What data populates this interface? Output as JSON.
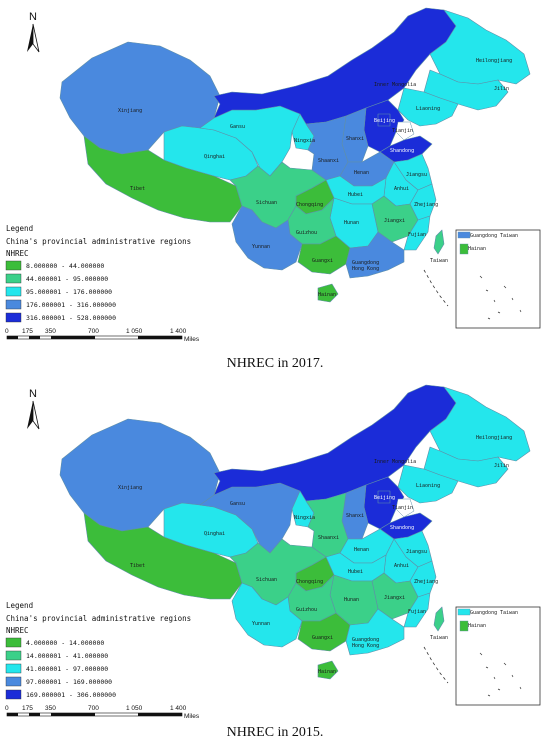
{
  "colors": {
    "c1": "#3cbd3a",
    "c2": "#3bd089",
    "c3": "#24e6ec",
    "c4": "#4a89de",
    "c5": "#1b2cd8",
    "border": "#5f8fa8",
    "outline": "#2d2d2d"
  },
  "north_label": "N",
  "legend_title": "Legend",
  "legend_layer": "China's provincial administrative regions",
  "legend_field": "NHREC",
  "scale": {
    "ticks": [
      "0",
      "175",
      "350",
      "700",
      "1 050",
      "1 400"
    ],
    "unit": "Miles"
  },
  "province_labels": {
    "xinjiang": "Xinjiang",
    "tibet": "Tibet",
    "qinghai": "Qinghai",
    "gansu": "Gansu",
    "inner_mongolia": "Inner Mongolia",
    "heilongjiang": "Heilongjiang",
    "jilin": "Jilin",
    "liaoning": "Liaoning",
    "sichuan": "Sichuan",
    "chongqing": "Chongqing",
    "yunnan": "Yunnan",
    "guizhou": "Guizhou",
    "guangxi": "Guangxi",
    "guangdong": "Guangdong",
    "hong_kong": "Hong Kong",
    "hainan": "Hainan",
    "hunan": "Hunan",
    "hubei": "Hubei",
    "henan": "Henan",
    "shaanxi": "Shaanxi",
    "shanxi": "Shanxi",
    "ningxia": "Ningxia",
    "shandong": "Shandong",
    "jiangxi": "Jiangxi",
    "fujian": "Fujian",
    "zhejiang": "Zhejiang",
    "anhui": "Anhui",
    "jiangsu": "Jiangsu",
    "beijing": "Beijing",
    "tianjin": "Tianjin",
    "taiwan": "Taiwan"
  },
  "maps": [
    {
      "caption": "NHREC in 2017.",
      "legend": [
        "8.000000 - 44.000000",
        "44.000001 - 95.000000",
        "95.000001 - 176.000000",
        "176.000001 - 316.000000",
        "316.000001 - 528.000000"
      ],
      "classes": {
        "xinjiang": 4,
        "tibet": 1,
        "qinghai": 3,
        "gansu": 3,
        "inner_mongolia": 5,
        "heilongjiang": 3,
        "jilin": 3,
        "liaoning": 3,
        "sichuan": 2,
        "chongqing": 1,
        "yunnan": 4,
        "guizhou": 2,
        "guangxi": 1,
        "guangdong": 4,
        "hainan": 1,
        "hunan": 3,
        "hubei": 3,
        "henan": 4,
        "shaanxi": 4,
        "shanxi": 4,
        "ningxia": 3,
        "shandong": 5,
        "jiangxi": 2,
        "fujian": 3,
        "zhejiang": 3,
        "anhui": 3,
        "jiangsu": 3,
        "beijing": 5,
        "hebei": 5,
        "taiwan": 2
      }
    },
    {
      "caption": "NHREC in 2015.",
      "legend": [
        "4.000000 - 14.000000",
        "14.000001 - 41.000000",
        "41.000001 - 97.000000",
        "97.000001 - 169.000000",
        "169.000001 - 306.000000"
      ],
      "classes": {
        "xinjiang": 4,
        "tibet": 1,
        "qinghai": 3,
        "gansu": 4,
        "inner_mongolia": 5,
        "heilongjiang": 3,
        "jilin": 3,
        "liaoning": 3,
        "sichuan": 2,
        "chongqing": 1,
        "yunnan": 3,
        "guizhou": 2,
        "guangxi": 1,
        "guangdong": 3,
        "hainan": 1,
        "hunan": 2,
        "hubei": 3,
        "henan": 3,
        "shaanxi": 2,
        "shanxi": 4,
        "ningxia": 3,
        "shandong": 5,
        "jiangxi": 2,
        "fujian": 3,
        "zhejiang": 3,
        "anhui": 3,
        "jiangsu": 3,
        "beijing": 5,
        "hebei": 5,
        "taiwan": 2
      }
    }
  ]
}
